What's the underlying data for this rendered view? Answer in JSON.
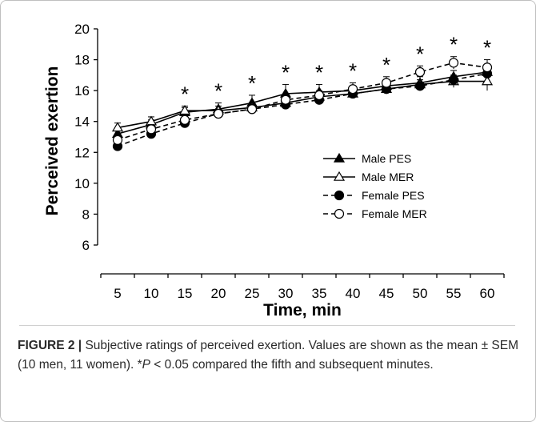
{
  "chart_data": {
    "type": "line",
    "xlabel": "Time, min",
    "ylabel": "Perceived exertion",
    "x": [
      5,
      10,
      15,
      20,
      25,
      30,
      35,
      40,
      45,
      50,
      55,
      60
    ],
    "ylim": [
      6,
      20
    ],
    "yticks": [
      6,
      8,
      10,
      12,
      14,
      16,
      18,
      20
    ],
    "series": [
      {
        "name": "Male PES",
        "marker": "triangle-filled",
        "dash": false,
        "values": [
          13.2,
          13.8,
          14.6,
          14.8,
          15.2,
          15.8,
          15.9,
          16.0,
          16.3,
          16.5,
          16.9,
          17.2
        ],
        "err": [
          0.3,
          0.3,
          0.3,
          0.4,
          0.5,
          0.6,
          0.5,
          0.5,
          0.4,
          0.4,
          0.4,
          0.4
        ]
      },
      {
        "name": "Male MER",
        "marker": "triangle-open",
        "dash": false,
        "values": [
          13.6,
          14.0,
          14.7,
          14.7,
          14.9,
          15.2,
          15.6,
          15.8,
          16.1,
          16.4,
          16.6,
          16.6
        ],
        "err": [
          0.3,
          0.3,
          0.3,
          0.3,
          0.3,
          0.3,
          0.3,
          0.3,
          0.3,
          0.3,
          0.4,
          0.6
        ]
      },
      {
        "name": "Female PES",
        "marker": "circle-filled",
        "dash": true,
        "values": [
          12.4,
          13.2,
          13.9,
          14.5,
          14.8,
          15.1,
          15.4,
          15.8,
          16.1,
          16.3,
          16.7,
          17.1
        ],
        "err": [
          0.2,
          0.2,
          0.2,
          0.2,
          0.2,
          0.2,
          0.2,
          0.2,
          0.2,
          0.2,
          0.2,
          0.3
        ]
      },
      {
        "name": "Female MER",
        "marker": "circle-open",
        "dash": true,
        "values": [
          12.8,
          13.5,
          14.1,
          14.5,
          14.8,
          15.4,
          15.7,
          16.1,
          16.5,
          17.2,
          17.8,
          17.5
        ],
        "err": [
          0.3,
          0.3,
          0.3,
          0.3,
          0.3,
          0.3,
          0.3,
          0.4,
          0.4,
          0.4,
          0.4,
          0.5
        ]
      }
    ],
    "significance": {
      "marker": "*",
      "x": [
        15,
        20,
        25,
        30,
        35,
        40,
        45,
        50,
        55,
        60
      ]
    },
    "legend_position": "inside-right"
  },
  "caption": {
    "label": "FIGURE 2 |",
    "text_before": " Subjective ratings of perceived exertion. Values are shown as the mean ± SEM (10 men, 11 women). *",
    "italic": "P",
    "text_after": " < 0.05 compared the fifth and subsequent minutes."
  }
}
